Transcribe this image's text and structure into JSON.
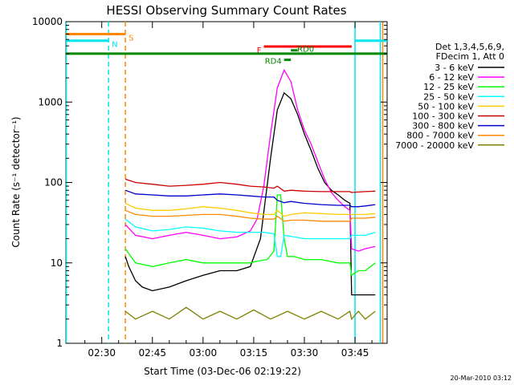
{
  "chart_data": {
    "type": "line",
    "title": "HESSI Observing Summary Count Rates",
    "xlabel": "Start Time (03-Dec-06 02:19:22)",
    "ylabel": "Count Rate (s⁻¹ detector⁻¹)",
    "yscale": "log",
    "ylim": [
      1,
      10000
    ],
    "xlim_minutes": [
      19.37,
      114.5
    ],
    "x_tick_labels": [
      "02:30",
      "02:45",
      "03:00",
      "03:15",
      "03:30",
      "03:45"
    ],
    "x_tick_minutes": [
      30,
      45,
      60,
      75,
      90,
      105
    ],
    "y_tick_labels": [
      "1",
      "10",
      "100",
      "1000",
      "10000"
    ],
    "y_tick_values": [
      1,
      10,
      100,
      1000,
      10000
    ],
    "legend_header": [
      "Det 1,3,4,5,6,9,",
      "FDecim 1, Att 0"
    ],
    "legend_position": "right",
    "series": [
      {
        "name": "3 - 6 keV",
        "color": "#000000",
        "points": [
          [
            37,
            12
          ],
          [
            38,
            9
          ],
          [
            40,
            6
          ],
          [
            42,
            5
          ],
          [
            45,
            4.5
          ],
          [
            50,
            5
          ],
          [
            55,
            6
          ],
          [
            60,
            7
          ],
          [
            65,
            8
          ],
          [
            70,
            8
          ],
          [
            74,
            9
          ],
          [
            77,
            20
          ],
          [
            80,
            200
          ],
          [
            82,
            800
          ],
          [
            84,
            1300
          ],
          [
            86,
            1100
          ],
          [
            88,
            700
          ],
          [
            90,
            400
          ],
          [
            92,
            250
          ],
          [
            94,
            150
          ],
          [
            96,
            100
          ],
          [
            98,
            80
          ],
          [
            100,
            70
          ],
          [
            102,
            60
          ],
          [
            103.5,
            55
          ],
          [
            104,
            4
          ],
          [
            106,
            4
          ],
          [
            108,
            4
          ],
          [
            111,
            4
          ]
        ]
      },
      {
        "name": "6 - 12 keV",
        "color": "#ff00ff",
        "points": [
          [
            37,
            30
          ],
          [
            40,
            22
          ],
          [
            45,
            20
          ],
          [
            50,
            22
          ],
          [
            55,
            24
          ],
          [
            60,
            22
          ],
          [
            65,
            20
          ],
          [
            70,
            21
          ],
          [
            74,
            25
          ],
          [
            76,
            35
          ],
          [
            78,
            90
          ],
          [
            80,
            400
          ],
          [
            82,
            1500
          ],
          [
            84,
            2500
          ],
          [
            86,
            1800
          ],
          [
            88,
            800
          ],
          [
            90,
            450
          ],
          [
            92,
            300
          ],
          [
            94,
            180
          ],
          [
            96,
            110
          ],
          [
            98,
            75
          ],
          [
            100,
            60
          ],
          [
            102,
            50
          ],
          [
            103.5,
            45
          ],
          [
            104,
            15
          ],
          [
            106,
            14
          ],
          [
            108,
            15
          ],
          [
            111,
            16
          ]
        ]
      },
      {
        "name": "12 - 25 keV",
        "color": "#00ff00",
        "points": [
          [
            37,
            15
          ],
          [
            40,
            10
          ],
          [
            45,
            9
          ],
          [
            50,
            10
          ],
          [
            55,
            11
          ],
          [
            60,
            10
          ],
          [
            65,
            10
          ],
          [
            70,
            10
          ],
          [
            74,
            10
          ],
          [
            76,
            10.5
          ],
          [
            79,
            11
          ],
          [
            81,
            14
          ],
          [
            82,
            70
          ],
          [
            83,
            70
          ],
          [
            84,
            20
          ],
          [
            85,
            12
          ],
          [
            87,
            12
          ],
          [
            90,
            11
          ],
          [
            95,
            11
          ],
          [
            100,
            10
          ],
          [
            103.5,
            10
          ],
          [
            104,
            7
          ],
          [
            106,
            8
          ],
          [
            108,
            8
          ],
          [
            111,
            10
          ]
        ]
      },
      {
        "name": "25 - 50 keV",
        "color": "#00ffff",
        "points": [
          [
            37,
            35
          ],
          [
            40,
            28
          ],
          [
            45,
            25
          ],
          [
            50,
            26
          ],
          [
            55,
            28
          ],
          [
            60,
            27
          ],
          [
            65,
            25
          ],
          [
            70,
            24
          ],
          [
            74,
            24
          ],
          [
            78,
            24
          ],
          [
            81,
            23
          ],
          [
            82,
            12
          ],
          [
            83,
            12
          ],
          [
            84,
            22
          ],
          [
            87,
            21
          ],
          [
            90,
            20
          ],
          [
            95,
            20
          ],
          [
            100,
            20
          ],
          [
            103.5,
            20
          ],
          [
            104,
            22
          ],
          [
            106,
            22
          ],
          [
            108,
            22
          ],
          [
            111,
            24
          ]
        ]
      },
      {
        "name": "50 - 100 keV",
        "color": "#ffcc00",
        "points": [
          [
            37,
            55
          ],
          [
            40,
            48
          ],
          [
            45,
            45
          ],
          [
            50,
            45
          ],
          [
            55,
            47
          ],
          [
            60,
            50
          ],
          [
            65,
            48
          ],
          [
            70,
            45
          ],
          [
            74,
            42
          ],
          [
            78,
            40
          ],
          [
            81,
            40
          ],
          [
            82,
            45
          ],
          [
            84,
            38
          ],
          [
            86,
            40
          ],
          [
            90,
            42
          ],
          [
            95,
            41
          ],
          [
            100,
            40
          ],
          [
            103.5,
            40
          ],
          [
            104,
            40
          ],
          [
            106,
            40
          ],
          [
            108,
            40
          ],
          [
            111,
            41
          ]
        ]
      },
      {
        "name": "100 - 300 keV",
        "color": "#cc0000",
        "points": [
          [
            37,
            110
          ],
          [
            40,
            100
          ],
          [
            45,
            95
          ],
          [
            50,
            90
          ],
          [
            55,
            92
          ],
          [
            60,
            95
          ],
          [
            65,
            100
          ],
          [
            70,
            95
          ],
          [
            74,
            90
          ],
          [
            78,
            88
          ],
          [
            81,
            85
          ],
          [
            82,
            90
          ],
          [
            84,
            78
          ],
          [
            86,
            80
          ],
          [
            90,
            78
          ],
          [
            95,
            77
          ],
          [
            100,
            77
          ],
          [
            103.5,
            77
          ],
          [
            104,
            75
          ],
          [
            106,
            76
          ],
          [
            108,
            77
          ],
          [
            111,
            78
          ]
        ]
      },
      {
        "name": "300 - 800 keV",
        "color": "#0000cc",
        "points": [
          [
            37,
            80
          ],
          [
            40,
            72
          ],
          [
            45,
            70
          ],
          [
            50,
            68
          ],
          [
            55,
            68
          ],
          [
            60,
            70
          ],
          [
            65,
            72
          ],
          [
            70,
            70
          ],
          [
            74,
            68
          ],
          [
            78,
            66
          ],
          [
            81,
            66
          ],
          [
            82,
            60
          ],
          [
            84,
            56
          ],
          [
            86,
            58
          ],
          [
            90,
            55
          ],
          [
            95,
            53
          ],
          [
            100,
            52
          ],
          [
            103.5,
            52
          ],
          [
            104,
            50
          ],
          [
            106,
            50
          ],
          [
            108,
            51
          ],
          [
            111,
            53
          ]
        ]
      },
      {
        "name": "800 - 7000 keV",
        "color": "#ff8800",
        "points": [
          [
            37,
            45
          ],
          [
            40,
            40
          ],
          [
            45,
            38
          ],
          [
            50,
            38
          ],
          [
            55,
            39
          ],
          [
            60,
            40
          ],
          [
            65,
            40
          ],
          [
            70,
            38
          ],
          [
            74,
            36
          ],
          [
            78,
            35
          ],
          [
            81,
            35
          ],
          [
            82,
            38
          ],
          [
            84,
            33
          ],
          [
            86,
            34
          ],
          [
            90,
            34
          ],
          [
            95,
            33
          ],
          [
            100,
            33
          ],
          [
            103.5,
            33
          ],
          [
            104,
            36
          ],
          [
            106,
            36
          ],
          [
            108,
            36
          ],
          [
            111,
            37
          ]
        ]
      },
      {
        "name": "7000 - 20000 keV",
        "color": "#808000",
        "points": [
          [
            37,
            2.5
          ],
          [
            40,
            2
          ],
          [
            45,
            2.5
          ],
          [
            50,
            2
          ],
          [
            55,
            2.8
          ],
          [
            60,
            2
          ],
          [
            65,
            2.5
          ],
          [
            70,
            2
          ],
          [
            75,
            2.6
          ],
          [
            80,
            2
          ],
          [
            85,
            2.5
          ],
          [
            90,
            2
          ],
          [
            95,
            2.5
          ],
          [
            100,
            2
          ],
          [
            103.5,
            2.5
          ],
          [
            104,
            2
          ],
          [
            106,
            2.5
          ],
          [
            108,
            2
          ],
          [
            111,
            2.5
          ]
        ]
      }
    ],
    "flags": [
      {
        "label": "S",
        "color": "#ff8800",
        "start": 19.37,
        "end": 37,
        "level": 7000
      },
      {
        "label": "N",
        "color": "#00e5ee",
        "start": 19.37,
        "end": 32,
        "level": 5800
      },
      {
        "label": "",
        "color": "#00e5ee",
        "start": 105,
        "end": 114.5,
        "level": 5800
      },
      {
        "label": "F",
        "color": "#ff0000",
        "start": 78,
        "end": 104,
        "level": 4900
      },
      {
        "label": "RD0",
        "color": "#008800",
        "start": 86,
        "end": 88,
        "level": 4400
      },
      {
        "label": "RD4",
        "color": "#008800",
        "start": 84,
        "end": 86,
        "level": 3350
      },
      {
        "label": "",
        "color": "#008800",
        "start": 19.37,
        "end": 114.5,
        "level": 4000
      }
    ],
    "vertical_markers": [
      {
        "minute": 19.5,
        "color": "#00e5ee",
        "style": "solid"
      },
      {
        "minute": 32,
        "color": "#00e5ee",
        "style": "dashed"
      },
      {
        "minute": 37,
        "color": "#ff8800",
        "style": "dashed"
      },
      {
        "minute": 105,
        "color": "#00e5ee",
        "style": "solid"
      },
      {
        "minute": 112.5,
        "color": "#00e5ee",
        "style": "solid"
      },
      {
        "minute": 113.2,
        "color": "#ff8800",
        "style": "solid"
      }
    ],
    "footer": "20-Mar-2010 03:12"
  }
}
